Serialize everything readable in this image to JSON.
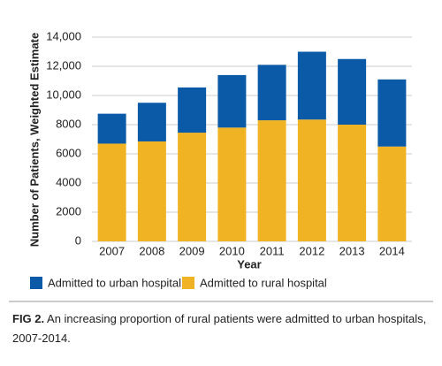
{
  "chart_data": {
    "type": "stacked-bar",
    "y_label": "Number of Patients, Weighted Estimate",
    "x_label": "Year",
    "categories": [
      "2007",
      "2008",
      "2009",
      "2010",
      "2011",
      "2012",
      "2013",
      "2014"
    ],
    "series": [
      {
        "name": "Admitted to urban hospital",
        "color": "#0a5aa8",
        "values": [
          2050,
          2650,
          3100,
          3600,
          3800,
          4650,
          4500,
          4600
        ]
      },
      {
        "name": "Admitted to rural hospital",
        "color": "#f0b323",
        "values": [
          6700,
          6850,
          7450,
          7800,
          8300,
          8350,
          8000,
          6500
        ]
      }
    ],
    "ylim": [
      0,
      14000
    ],
    "yticks": [
      0,
      2000,
      4000,
      6000,
      8000,
      {
        "value": 10000,
        "label": "10,000"
      },
      {
        "value": 12000,
        "label": "12,000"
      },
      {
        "value": 14000,
        "label": "14,000"
      }
    ],
    "grid": true
  },
  "caption": {
    "label": "FIG 2.",
    "text": "An increasing proportion of rural patients were admitted to urban hospitals, 2007-2014."
  }
}
